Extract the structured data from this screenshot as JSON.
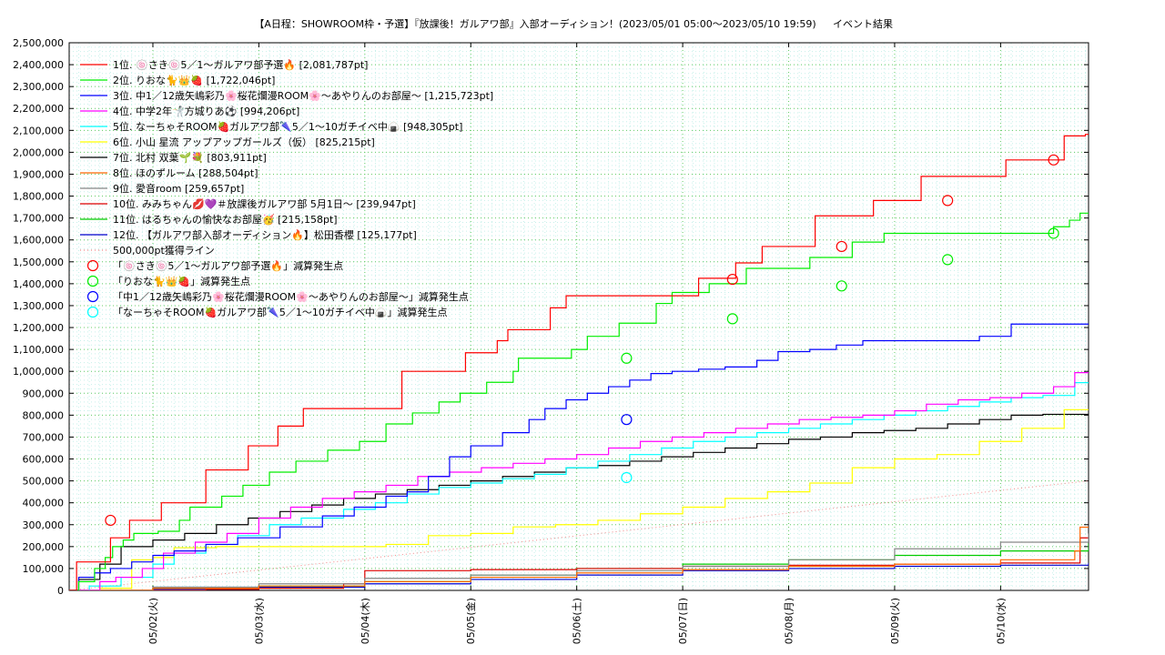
{
  "chart_data": {
    "type": "line",
    "title": "【A日程：SHOWROOM枠・予選】『放課後！ガルアワ部』入部オーディション！(2023/05/01 05:00〜2023/05/10 19:59)",
    "subtitle": "イベント結果",
    "xlabel": "",
    "ylabel": "",
    "x_unit": "day",
    "x_range": [
      0.21,
      9.83
    ],
    "xlim": [
      0.21,
      9.83
    ],
    "ylim": [
      0,
      2500000
    ],
    "y_ticks": [
      0,
      100000,
      200000,
      300000,
      400000,
      500000,
      600000,
      700000,
      800000,
      900000,
      1000000,
      1100000,
      1200000,
      1300000,
      1400000,
      1500000,
      1600000,
      1700000,
      1800000,
      1900000,
      2000000,
      2100000,
      2200000,
      2300000,
      2400000,
      2500000
    ],
    "y_tick_labels": [
      "0",
      "100,000",
      "200,000",
      "300,000",
      "400,000",
      "500,000",
      "600,000",
      "700,000",
      "800,000",
      "900,000",
      "1,000,000",
      "1,100,000",
      "1,200,000",
      "1,300,000",
      "1,400,000",
      "1,500,000",
      "1,600,000",
      "1,700,000",
      "1,800,000",
      "1,900,000",
      "2,000,000",
      "2,100,000",
      "2,200,000",
      "2,300,000",
      "2,400,000",
      "2,500,000"
    ],
    "x_ticks": [
      1,
      2,
      3,
      4,
      5,
      6,
      7,
      8,
      9
    ],
    "x_tick_labels": [
      "05/02(火)",
      "05/03(水)",
      "05/04(木)",
      "05/05(金)",
      "05/06(土)",
      "05/07(日)",
      "05/08(月)",
      "05/09(火)",
      "05/10(水)"
    ],
    "grid": true,
    "legend_position": "top-left",
    "series": [
      {
        "name": "1位. 🍥さき🍥5／1〜ガルアワ部予選🔥 [2,081,787pt]",
        "color": "#ff0000",
        "x": [
          0.21,
          0.27,
          0.28,
          0.59,
          0.6,
          0.78,
          0.95,
          1.08,
          1.29,
          1.5,
          1.55,
          1.82,
          1.9,
          1.98,
          2.18,
          2.42,
          2.65,
          2.88,
          2.9,
          3.35,
          3.45,
          3.75,
          3.95,
          4.25,
          4.35,
          4.62,
          4.75,
          4.9,
          5.3,
          5.35,
          5.55,
          5.65,
          5.85,
          6.0,
          6.15,
          6.3,
          6.5,
          6.6,
          6.75,
          6.85,
          6.95,
          7.05,
          7.25,
          7.35,
          7.5,
          7.65,
          7.8,
          7.9,
          8.05,
          8.25,
          8.5,
          8.55,
          8.7,
          8.8,
          9.05,
          9.2,
          9.3,
          9.55,
          9.6,
          9.8,
          9.83
        ],
        "y": [
          0,
          0,
          130000,
          130000,
          240000,
          320000,
          320000,
          400000,
          400000,
          550000,
          550000,
          550000,
          660000,
          660000,
          750000,
          830000,
          830000,
          830000,
          830000,
          1000000,
          1000000,
          1000000,
          1085000,
          1140000,
          1190000,
          1190000,
          1290000,
          1345000,
          1345000,
          1345000,
          1345000,
          1345000,
          1345000,
          1345000,
          1425000,
          1425000,
          1495000,
          1495000,
          1570000,
          1570000,
          1570000,
          1570000,
          1710000,
          1710000,
          1710000,
          1710000,
          1780000,
          1780000,
          1780000,
          1890000,
          1890000,
          1890000,
          1890000,
          1890000,
          1965000,
          1965000,
          1965000,
          1965000,
          2075000,
          2081787,
          2081787
        ]
      },
      {
        "name": "2位. りおな🐈👑🍓 [1,722,046pt]",
        "color": "#00ee00",
        "x": [
          0.21,
          0.3,
          0.45,
          0.55,
          0.62,
          0.72,
          0.82,
          1.05,
          1.25,
          1.35,
          1.65,
          1.85,
          2.1,
          2.35,
          2.65,
          2.95,
          3.2,
          3.45,
          3.7,
          3.9,
          4.15,
          4.4,
          4.45,
          4.7,
          4.95,
          5.1,
          5.4,
          5.55,
          5.75,
          5.9,
          6.25,
          6.45,
          6.6,
          6.85,
          7.2,
          7.4,
          7.6,
          7.9,
          8.1,
          8.35,
          8.55,
          8.7,
          9.2,
          9.5,
          9.65,
          9.75,
          9.83
        ],
        "y": [
          0,
          40000,
          100000,
          150000,
          200000,
          230000,
          260000,
          270000,
          320000,
          380000,
          430000,
          480000,
          540000,
          590000,
          640000,
          680000,
          760000,
          810000,
          860000,
          900000,
          950000,
          1000000,
          1060000,
          1060000,
          1100000,
          1160000,
          1220000,
          1220000,
          1310000,
          1360000,
          1400000,
          1400000,
          1470000,
          1470000,
          1520000,
          1520000,
          1590000,
          1630000,
          1630000,
          1630000,
          1630000,
          1630000,
          1630000,
          1660000,
          1690000,
          1722046,
          1722046
        ]
      },
      {
        "name": "3位. 中1／12歳矢嶋彩乃🌸桜花爛漫ROOM🌸〜あやりんのお部屋〜 [1,215,723pt]",
        "color": "#0000ff",
        "x": [
          0.21,
          0.3,
          0.45,
          0.6,
          0.8,
          1.0,
          1.2,
          1.5,
          1.8,
          2.2,
          2.6,
          2.9,
          3.2,
          3.4,
          3.6,
          3.8,
          4.0,
          4.3,
          4.55,
          4.7,
          4.9,
          5.1,
          5.3,
          5.5,
          5.7,
          5.9,
          6.15,
          6.4,
          6.7,
          6.9,
          7.2,
          7.45,
          7.7,
          7.95,
          8.2,
          8.5,
          8.8,
          9.1,
          9.35,
          9.6,
          9.83
        ],
        "y": [
          0,
          60000,
          80000,
          100000,
          130000,
          160000,
          180000,
          210000,
          240000,
          290000,
          340000,
          380000,
          430000,
          450000,
          520000,
          610000,
          660000,
          720000,
          780000,
          830000,
          870000,
          900000,
          930000,
          960000,
          990000,
          1000000,
          1010000,
          1020000,
          1050000,
          1090000,
          1100000,
          1120000,
          1140000,
          1140000,
          1140000,
          1140000,
          1160000,
          1215723,
          1215723,
          1215723,
          1215723
        ]
      },
      {
        "name": "4位. 中学2年🤺方城りあ⚽ [994,206pt]",
        "color": "#ff00ff",
        "x": [
          0.21,
          0.5,
          0.65,
          0.9,
          1.1,
          1.4,
          1.7,
          2.0,
          2.3,
          2.6,
          2.9,
          3.2,
          3.5,
          3.8,
          4.1,
          4.4,
          4.7,
          5.0,
          5.3,
          5.6,
          5.9,
          6.2,
          6.5,
          6.8,
          7.1,
          7.4,
          7.7,
          8.0,
          8.3,
          8.6,
          8.9,
          9.2,
          9.5,
          9.7,
          9.83
        ],
        "y": [
          0,
          40000,
          60000,
          100000,
          170000,
          220000,
          260000,
          330000,
          380000,
          420000,
          450000,
          480000,
          520000,
          540000,
          560000,
          580000,
          600000,
          620000,
          650000,
          680000,
          700000,
          720000,
          740000,
          760000,
          780000,
          790000,
          800000,
          820000,
          850000,
          870000,
          880000,
          900000,
          930000,
          994206,
          994206
        ]
      },
      {
        "name": "5位. なーちゃそROOM🍓ガルアワ部🌂5／1〜10ガチイベ中🍙 [948,305pt]",
        "color": "#00ffff",
        "x": [
          0.21,
          0.4,
          0.7,
          1.0,
          1.2,
          1.5,
          1.8,
          2.1,
          2.4,
          2.8,
          3.1,
          3.4,
          3.7,
          4.0,
          4.3,
          4.6,
          4.9,
          5.2,
          5.5,
          5.8,
          6.1,
          6.4,
          6.7,
          7.0,
          7.3,
          7.6,
          7.9,
          8.2,
          8.5,
          8.8,
          9.1,
          9.4,
          9.7,
          9.83
        ],
        "y": [
          0,
          20000,
          60000,
          120000,
          170000,
          210000,
          250000,
          300000,
          330000,
          370000,
          400000,
          440000,
          470000,
          490000,
          510000,
          530000,
          560000,
          590000,
          620000,
          650000,
          680000,
          700000,
          720000,
          740000,
          760000,
          780000,
          800000,
          820000,
          840000,
          860000,
          880000,
          890000,
          948305,
          948305
        ]
      },
      {
        "name": "6位. 小山 星流 アップアップガールズ（仮） [825,215pt]",
        "color": "#ffff00",
        "x": [
          0.21,
          0.5,
          0.8,
          1.0,
          1.2,
          1.6,
          2.0,
          2.4,
          2.8,
          3.2,
          3.6,
          4.0,
          4.4,
          4.8,
          5.2,
          5.6,
          6.0,
          6.4,
          6.8,
          7.2,
          7.6,
          8.0,
          8.4,
          8.8,
          9.2,
          9.6,
          9.83
        ],
        "y": [
          0,
          10000,
          140000,
          150000,
          195000,
          200000,
          200000,
          200000,
          200000,
          210000,
          250000,
          260000,
          290000,
          300000,
          320000,
          350000,
          380000,
          420000,
          450000,
          490000,
          560000,
          600000,
          620000,
          680000,
          740000,
          825215,
          825215
        ]
      },
      {
        "name": "7位. 北村 双葉🌱💐 [803,911pt]",
        "color": "#000000",
        "x": [
          0.21,
          0.3,
          0.5,
          0.7,
          1.0,
          1.3,
          1.6,
          1.9,
          2.2,
          2.5,
          2.8,
          3.1,
          3.4,
          3.7,
          4.0,
          4.3,
          4.6,
          4.9,
          5.2,
          5.5,
          5.8,
          6.1,
          6.4,
          6.7,
          7.0,
          7.3,
          7.6,
          7.9,
          8.2,
          8.5,
          8.8,
          9.1,
          9.4,
          9.6,
          9.83
        ],
        "y": [
          0,
          50000,
          120000,
          200000,
          230000,
          260000,
          300000,
          330000,
          360000,
          390000,
          420000,
          440000,
          460000,
          480000,
          500000,
          520000,
          540000,
          560000,
          570000,
          590000,
          610000,
          630000,
          650000,
          670000,
          690000,
          700000,
          720000,
          730000,
          740000,
          760000,
          780000,
          800000,
          803911,
          803911,
          803911
        ]
      },
      {
        "name": "8位. ほのずルーム [288,504pt]",
        "color": "#ff6600",
        "x": [
          0.21,
          1.0,
          2.0,
          3.0,
          4.0,
          5.0,
          6.0,
          7.0,
          8.0,
          9.0,
          9.7,
          9.75,
          9.83
        ],
        "y": [
          0,
          10000,
          20000,
          40000,
          60000,
          80000,
          95000,
          110000,
          120000,
          140000,
          180000,
          288504,
          288504
        ]
      },
      {
        "name": "9位. 愛音room [259,657pt]",
        "color": "#888888",
        "x": [
          0.21,
          1.0,
          2.0,
          3.0,
          4.0,
          5.0,
          6.0,
          7.0,
          8.0,
          9.0,
          9.83
        ],
        "y": [
          0,
          15000,
          30000,
          55000,
          70000,
          90000,
          110000,
          140000,
          190000,
          220000,
          259657
        ]
      },
      {
        "name": "10位. みみちゃん💋💜＃放課後ガルアワ部 5月1日〜 [239,947pt]",
        "color": "#dd0000",
        "x": [
          0.21,
          1.5,
          2.0,
          2.8,
          3.0,
          4.0,
          5.0,
          6.0,
          7.0,
          8.0,
          9.0,
          9.75,
          9.83
        ],
        "y": [
          0,
          5000,
          10000,
          30000,
          90000,
          95000,
          100000,
          110000,
          115000,
          120000,
          125000,
          239947,
          239947
        ]
      },
      {
        "name": "11位. はるちゃんの愉快なお部屋🥳 [215,158pt]",
        "color": "#00cc00",
        "x": [
          0.21,
          1.0,
          2.0,
          3.0,
          4.0,
          5.0,
          6.0,
          7.0,
          8.0,
          9.0,
          9.83
        ],
        "y": [
          0,
          10000,
          20000,
          40000,
          70000,
          100000,
          120000,
          140000,
          160000,
          180000,
          215158
        ]
      },
      {
        "name": "12位. 【ガルアワ部入部オーディション🔥】松田香櫻 [125,177pt]",
        "color": "#0000cc",
        "x": [
          0.21,
          1.0,
          2.0,
          3.0,
          4.0,
          5.0,
          6.0,
          7.0,
          8.0,
          9.0,
          9.83
        ],
        "y": [
          0,
          5000,
          15000,
          30000,
          50000,
          70000,
          90000,
          100000,
          110000,
          115000,
          125177
        ]
      },
      {
        "name": "500,000pt獲得ライン",
        "color": "#ee8888",
        "style": "dotted",
        "x": [
          0.21,
          9.83
        ],
        "y": [
          0,
          500000
        ]
      }
    ],
    "markers": [
      {
        "name": "「🍥さき🍥5／1〜ガルアワ部予選🔥」減算発生点",
        "color": "#ff0000",
        "x": [
          0.6,
          6.47,
          7.5,
          8.5,
          9.5
        ],
        "y": [
          320000,
          1420000,
          1570000,
          1780000,
          1965000
        ]
      },
      {
        "name": "「りおな🐈👑🍓」減算発生点",
        "color": "#00ee00",
        "x": [
          5.47,
          6.47,
          7.5,
          8.5,
          9.5
        ],
        "y": [
          1060000,
          1240000,
          1390000,
          1510000,
          1630000
        ]
      },
      {
        "name": "「中1／12歳矢嶋彩乃🌸桜花爛漫ROOM🌸〜あやりんのお部屋〜」減算発生点",
        "color": "#0000ff",
        "x": [
          5.47
        ],
        "y": [
          780000
        ]
      },
      {
        "name": "「なーちゃそROOM🍓ガルアワ部🌂5／1〜10ガチイベ中🍙」減算発生点",
        "color": "#00ffff",
        "x": [
          5.47
        ],
        "y": [
          515000
        ]
      }
    ]
  }
}
